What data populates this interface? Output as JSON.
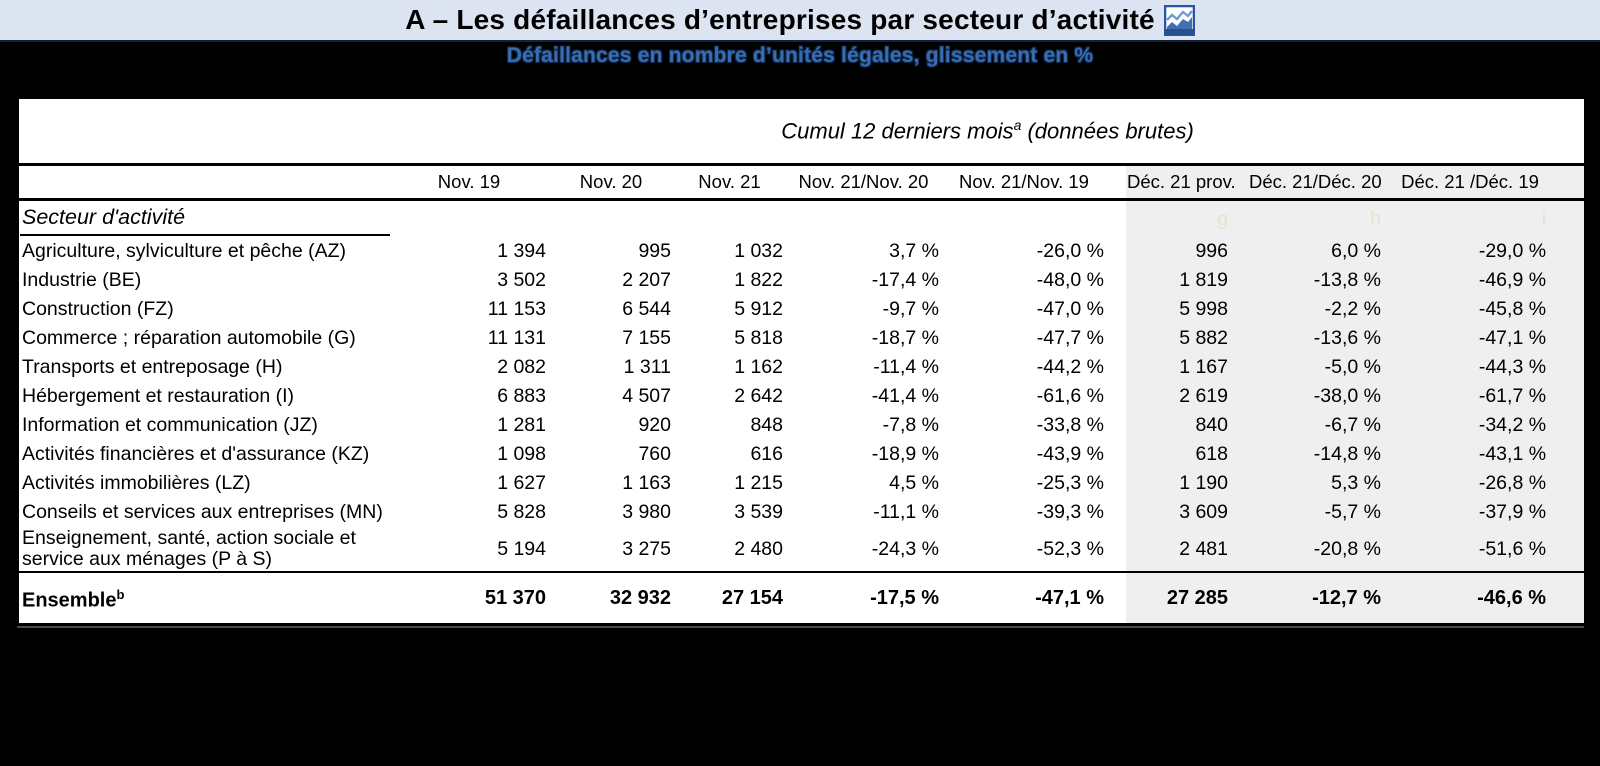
{
  "header": {
    "title": "A – Les défaillances d’entreprises par secteur d’activité",
    "subtitle": "Défaillances en nombre d’unités légales, glissement en %"
  },
  "table": {
    "group_header": {
      "text": "Cumul 12 derniers mois",
      "sup": "a",
      "suffix": " (données brutes)"
    },
    "columns": [
      "Nov. 19",
      "Nov. 20",
      "Nov. 21",
      "Nov. 21/Nov. 20",
      "Nov. 21/Nov. 19",
      "Déc. 21 prov.",
      "Déc. 21/Déc. 20",
      "Déc. 21 /Déc. 19"
    ],
    "column_letters": [
      "g",
      "h",
      "i"
    ],
    "section_label": "Secteur d'activité",
    "rows": [
      {
        "sector": "Agriculture, sylviculture et pêche (AZ)",
        "values": [
          "1 394",
          "995",
          "1 032",
          "3,7 %",
          "-26,0 %",
          "996",
          "6,0 %",
          "-29,0 %"
        ]
      },
      {
        "sector": "Industrie (BE)",
        "values": [
          "3 502",
          "2 207",
          "1 822",
          "-17,4 %",
          "-48,0 %",
          "1 819",
          "-13,8 %",
          "-46,9 %"
        ]
      },
      {
        "sector": "Construction (FZ)",
        "values": [
          "11 153",
          "6 544",
          "5 912",
          "-9,7 %",
          "-47,0 %",
          "5 998",
          "-2,2 %",
          "-45,8 %"
        ]
      },
      {
        "sector": "Commerce ; réparation automobile (G)",
        "values": [
          "11 131",
          "7 155",
          "5 818",
          "-18,7 %",
          "-47,7 %",
          "5 882",
          "-13,6 %",
          "-47,1 %"
        ]
      },
      {
        "sector": "Transports et entreposage (H)",
        "values": [
          "2 082",
          "1 311",
          "1 162",
          "-11,4 %",
          "-44,2 %",
          "1 167",
          "-5,0 %",
          "-44,3 %"
        ]
      },
      {
        "sector": "Hébergement et restauration (I)",
        "values": [
          "6 883",
          "4 507",
          "2 642",
          "-41,4 %",
          "-61,6 %",
          "2 619",
          "-38,0 %",
          "-61,7 %"
        ]
      },
      {
        "sector": "Information et communication (JZ)",
        "values": [
          "1 281",
          "920",
          "848",
          "-7,8 %",
          "-33,8 %",
          "840",
          "-6,7 %",
          "-34,2 %"
        ]
      },
      {
        "sector": "Activités financières et d'assurance (KZ)",
        "values": [
          "1 098",
          "760",
          "616",
          "-18,9 %",
          "-43,9 %",
          "618",
          "-14,8 %",
          "-43,1 %"
        ]
      },
      {
        "sector": "Activités immobilières (LZ)",
        "values": [
          "1 627",
          "1 163",
          "1 215",
          "4,5 %",
          "-25,3 %",
          "1 190",
          "5,3 %",
          "-26,8 %"
        ]
      },
      {
        "sector": "Conseils et services aux entreprises (MN)",
        "values": [
          "5 828",
          "3 980",
          "3 539",
          "-11,1 %",
          "-39,3 %",
          "3 609",
          "-5,7 %",
          "-37,9 %"
        ]
      },
      {
        "sector": "Enseignement, santé, action sociale et service aux ménages (P à S)",
        "values": [
          "5 194",
          "3 275",
          "2 480",
          "-24,3 %",
          "-52,3 %",
          "2 481",
          "-20,8 %",
          "-51,6 %"
        ]
      }
    ],
    "total": {
      "label": "Ensemble",
      "sup": "b",
      "values": [
        "51 370",
        "32 932",
        "27 154",
        "-17,5 %",
        "-47,1 %",
        "27 285",
        "-12,7 %",
        "-46,6 %"
      ]
    }
  },
  "colors": {
    "title_band": "#dce3f1",
    "subtitle_blue": "#3a6cb0",
    "subtitle_outline": "#0e2a4d",
    "gray_columns": "#efefef",
    "column_letter_tint": "#e7e3d1",
    "page_background": "#000000"
  }
}
